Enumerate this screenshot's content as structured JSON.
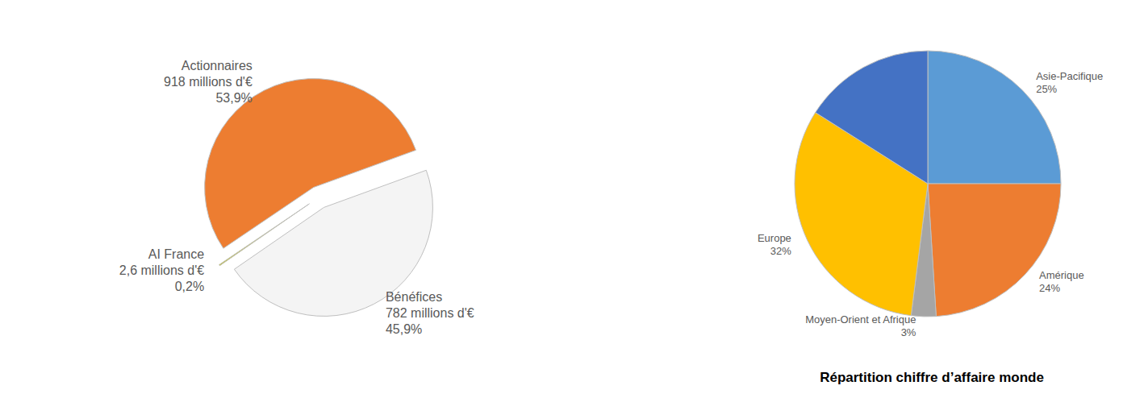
{
  "chart_data": [
    {
      "type": "pie",
      "categories": [
        "Actionnaires",
        "AI France",
        "Bénéfices"
      ],
      "values": [
        918,
        2.6,
        782
      ],
      "value_labels": [
        "918 millions d'€",
        "2,6 millions d'€",
        "782 millions d'€"
      ],
      "percentages": [
        53.9,
        0.2,
        45.9
      ],
      "percentage_labels": [
        "53,9%",
        "0,2%",
        "45,9%"
      ],
      "colors": [
        "#ed7d31",
        "#c9c900",
        "#f4f4f4"
      ],
      "data_labels": true
    },
    {
      "type": "pie",
      "title": "Répartition chiffre d’affaire monde",
      "categories": [
        "Asie-Pacifique",
        "Amérique",
        "Moyen-Orient et Afrique",
        "Europe",
        null
      ],
      "values": [
        25,
        24,
        3,
        32,
        16
      ],
      "value_labels": [
        "25%",
        "24%",
        "3%",
        "32%",
        null
      ],
      "colors": [
        "#5b9bd5",
        "#ed7d31",
        "#a5a5a5",
        "#ffc000",
        "#4472c4"
      ],
      "data_labels": true
    }
  ]
}
